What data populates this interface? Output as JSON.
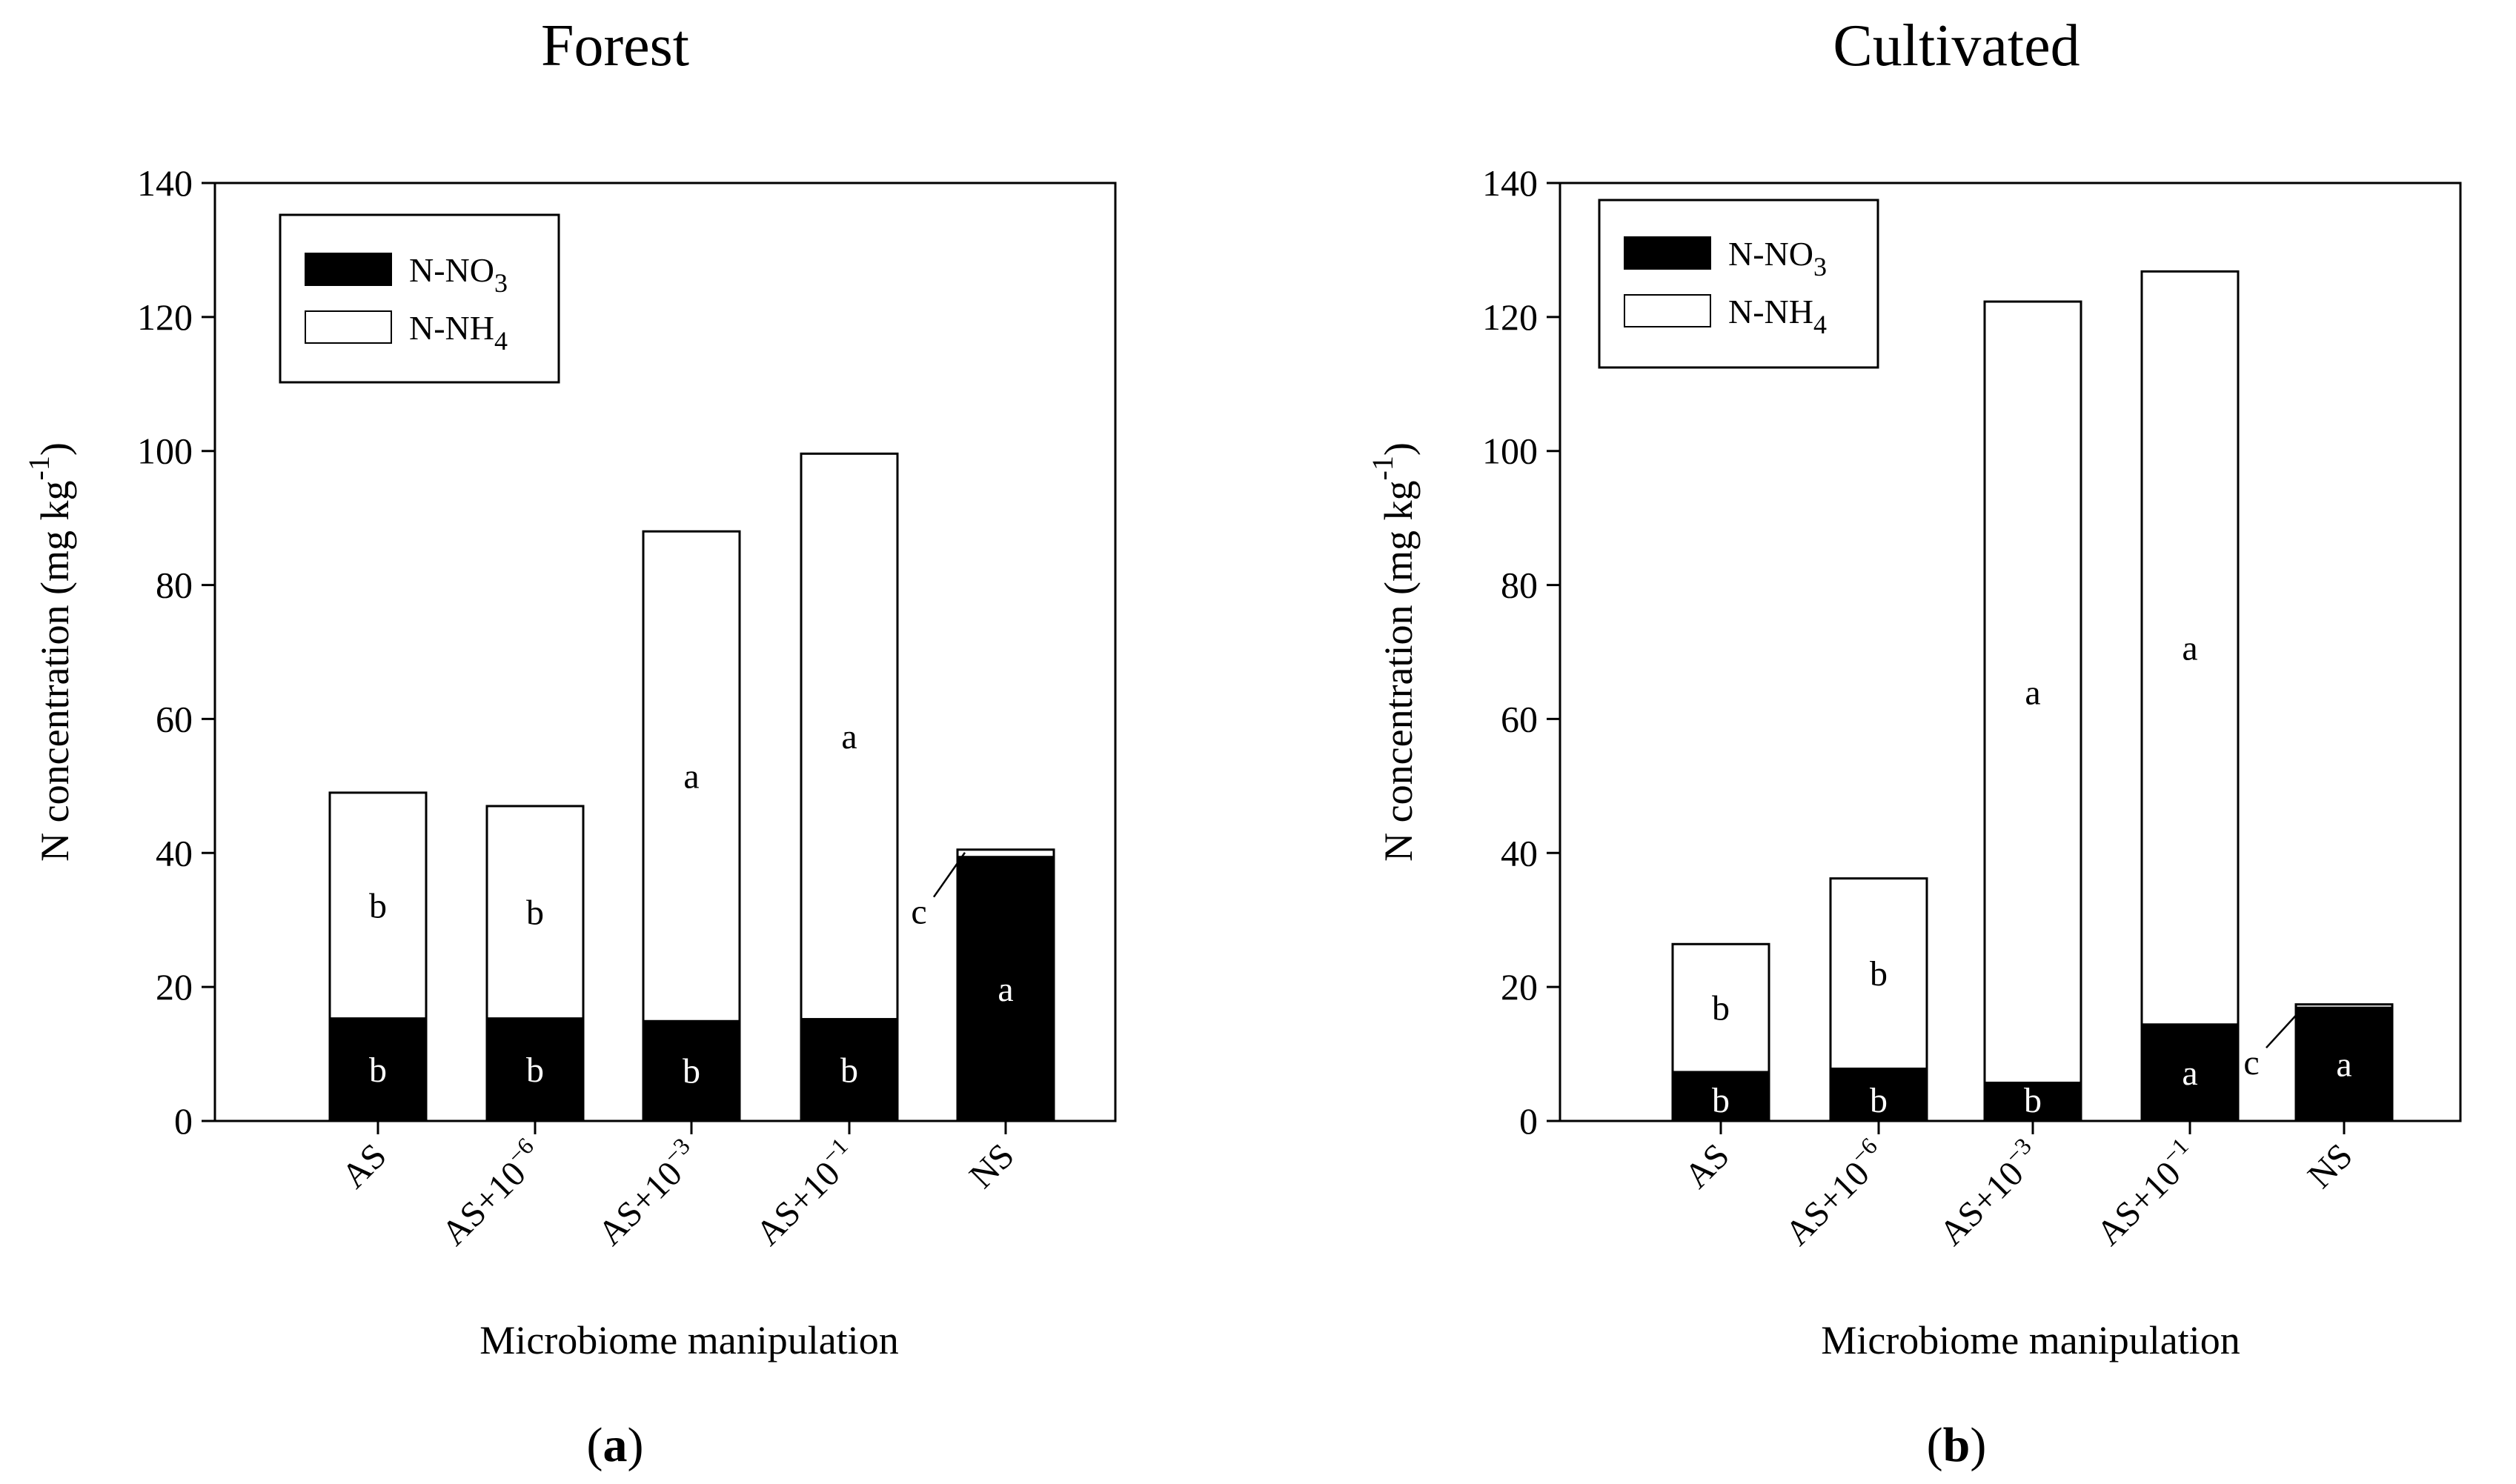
{
  "chart_data": [
    {
      "type": "bar",
      "stacked": true,
      "panel": "a",
      "title": "Forest",
      "xlabel": "Microbiome manipulation",
      "ylabel": "N concentration (mg kg",
      "ylabel_sup": "-1",
      "ylabel_close": ")",
      "ylim": [
        0,
        140
      ],
      "yticks": [
        0,
        20,
        40,
        60,
        80,
        100,
        120,
        140
      ],
      "legend_position": "top-left",
      "categories": [
        {
          "base": "AS",
          "exp": ""
        },
        {
          "base": "AS+10",
          "exp": "−6"
        },
        {
          "base": "AS+10",
          "exp": "−3"
        },
        {
          "base": "AS+10",
          "exp": "−1"
        },
        {
          "base": "NS",
          "exp": ""
        }
      ],
      "series": [
        {
          "name": "N-NO3",
          "label_main": "N-NO",
          "label_sub": "3",
          "color": "#000000",
          "values": [
            15.3,
            15.3,
            14.9,
            15.2,
            39.4
          ],
          "letters": [
            "b",
            "b",
            "b",
            "b",
            "a"
          ]
        },
        {
          "name": "N-NH4",
          "label_main": "N-NH",
          "label_sub": "4",
          "color": "#ffffff",
          "values": [
            33.7,
            31.7,
            73.1,
            84.4,
            1.1
          ],
          "letters": [
            "b",
            "b",
            "a",
            "a",
            "c"
          ]
        }
      ]
    },
    {
      "type": "bar",
      "stacked": true,
      "panel": "b",
      "title": "Cultivated",
      "xlabel": "Microbiome manipulation",
      "ylabel": "N concentration (mg kg",
      "ylabel_sup": "-1",
      "ylabel_close": ")",
      "ylim": [
        0,
        140
      ],
      "yticks": [
        0,
        20,
        40,
        60,
        80,
        100,
        120,
        140
      ],
      "legend_position": "top-left",
      "categories": [
        {
          "base": "AS",
          "exp": ""
        },
        {
          "base": "AS+10",
          "exp": "−6"
        },
        {
          "base": "AS+10",
          "exp": "−3"
        },
        {
          "base": "AS+10",
          "exp": "−1"
        },
        {
          "base": "NS",
          "exp": ""
        }
      ],
      "series": [
        {
          "name": "N-NO3",
          "label_main": "N-NO",
          "label_sub": "3",
          "color": "#000000",
          "values": [
            7.3,
            7.8,
            5.7,
            14.4,
            16.9
          ],
          "letters": [
            "b",
            "b",
            "b",
            "a",
            "a"
          ]
        },
        {
          "name": "N-NH4",
          "label_main": "N-NH",
          "label_sub": "4",
          "color": "#ffffff",
          "values": [
            19.1,
            28.4,
            116.6,
            112.4,
            0.5
          ],
          "letters": [
            "b",
            "b",
            "a",
            "a",
            "c"
          ]
        }
      ]
    }
  ],
  "panel_labels": [
    {
      "open": "(",
      "letter": "a",
      "close": ")"
    },
    {
      "open": "(",
      "letter": "b",
      "close": ")"
    }
  ]
}
